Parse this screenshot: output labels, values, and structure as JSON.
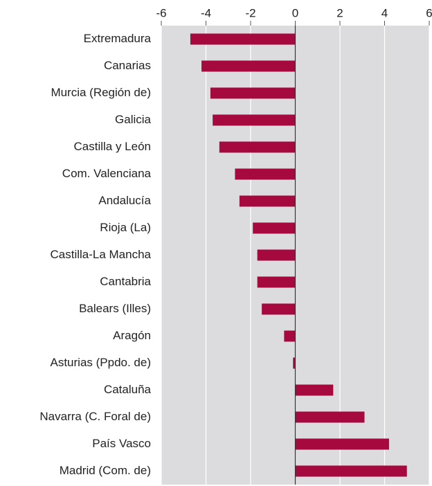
{
  "chart_data": {
    "type": "hbar",
    "categories": [
      "Extremadura",
      "Canarias",
      "Murcia (Región de)",
      "Galicia",
      "Castilla y León",
      "Com. Valenciana",
      "Andalucía",
      "Rioja (La)",
      "Castilla-La Mancha",
      "Cantabria",
      "Balears (Illes)",
      "Aragón",
      "Asturias (Ppdo. de)",
      "Cataluña",
      "Navarra (C. Foral de)",
      "País Vasco",
      "Madrid (Com. de)"
    ],
    "values": [
      -4.7,
      -4.2,
      -3.8,
      -3.7,
      -3.4,
      -2.7,
      -2.5,
      -1.9,
      -1.7,
      -1.7,
      -1.5,
      -0.5,
      -0.1,
      1.7,
      3.1,
      4.2,
      5.0
    ],
    "color": "#a6093d",
    "xlim": [
      -6,
      6
    ],
    "xticks": [
      -6,
      -4,
      -2,
      0,
      2,
      4,
      6
    ],
    "grid": true
  }
}
